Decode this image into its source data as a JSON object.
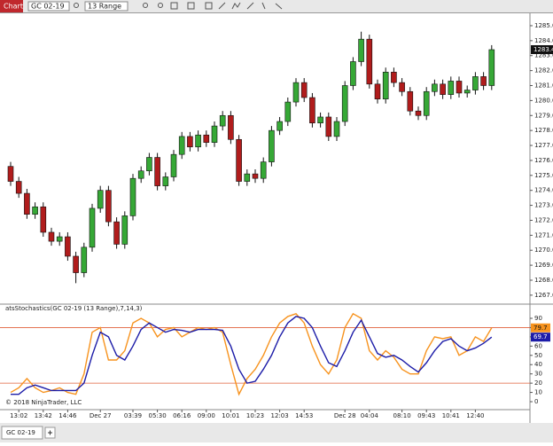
{
  "toolbar": {
    "window_title": "Chart",
    "instrument": "GC 02-19",
    "bar_type": "13 Range"
  },
  "tabs": [
    "GC 02-19"
  ],
  "chart_data": [
    {
      "type": "candlestick",
      "categories": [
        null,
        "13:02",
        null,
        null,
        "13:42",
        null,
        null,
        "14:46",
        null,
        null,
        null,
        "Dec 27",
        null,
        null,
        null,
        "03:39",
        null,
        null,
        "05:30",
        null,
        null,
        "06:16",
        null,
        null,
        "09:00",
        null,
        null,
        "10:01",
        null,
        null,
        "10:23",
        null,
        null,
        "12:03",
        null,
        null,
        "14:53",
        null,
        null,
        null,
        null,
        "Dec 28",
        null,
        null,
        "04:04",
        null,
        null,
        null,
        "08:10",
        null,
        null,
        "09:43",
        null,
        null,
        "10:41",
        null,
        null,
        "12:40",
        null,
        null
      ],
      "open": [
        1275.6,
        1274.6,
        1273.8,
        1272.4,
        1272.9,
        1271.2,
        1270.6,
        1270.9,
        1269.6,
        1268.5,
        1270.2,
        1272.8,
        1274.0,
        1271.9,
        1270.4,
        1272.3,
        1274.8,
        1275.3,
        1276.2,
        1274.3,
        1274.9,
        1276.4,
        1277.6,
        1276.9,
        1277.7,
        1277.2,
        1278.3,
        1279.0,
        1277.4,
        1274.6,
        1275.1,
        1274.8,
        1275.9,
        1278.0,
        1278.6,
        1279.9,
        1281.2,
        1280.2,
        1278.5,
        1278.9,
        1277.6,
        1278.6,
        1281.0,
        1282.6,
        1284.1,
        1281.1,
        1280.1,
        1281.9,
        1281.2,
        1280.6,
        1279.3,
        1279.0,
        1280.6,
        1281.1,
        1280.4,
        1281.3,
        1280.5,
        1280.7,
        1281.6,
        1281.0
      ],
      "high": [
        1275.9,
        1274.9,
        1274.1,
        1273.2,
        1273.2,
        1271.5,
        1271.2,
        1271.2,
        1269.9,
        1270.5,
        1273.1,
        1274.3,
        1274.3,
        1272.2,
        1272.6,
        1275.1,
        1275.6,
        1276.5,
        1276.5,
        1275.2,
        1276.7,
        1277.9,
        1277.9,
        1278.0,
        1278.0,
        1278.6,
        1279.3,
        1279.3,
        1277.7,
        1275.4,
        1275.4,
        1276.2,
        1278.3,
        1278.9,
        1280.2,
        1281.5,
        1281.5,
        1280.5,
        1279.2,
        1279.2,
        1278.9,
        1281.3,
        1282.9,
        1284.6,
        1284.4,
        1281.4,
        1282.2,
        1282.2,
        1281.5,
        1280.9,
        1279.6,
        1280.9,
        1281.4,
        1281.4,
        1281.6,
        1281.6,
        1281.0,
        1281.9,
        1281.9,
        1283.7
      ],
      "low": [
        1274.3,
        1273.5,
        1272.1,
        1272.1,
        1270.9,
        1270.3,
        1270.3,
        1269.3,
        1267.8,
        1268.2,
        1269.9,
        1272.5,
        1271.6,
        1270.1,
        1270.1,
        1272.0,
        1274.5,
        1275.0,
        1274.0,
        1274.0,
        1274.6,
        1276.1,
        1276.6,
        1276.6,
        1276.9,
        1276.9,
        1278.0,
        1277.1,
        1274.3,
        1274.3,
        1274.5,
        1274.5,
        1275.6,
        1277.7,
        1278.3,
        1279.6,
        1279.9,
        1278.2,
        1278.2,
        1277.3,
        1277.3,
        1278.3,
        1280.7,
        1282.3,
        1280.8,
        1279.8,
        1279.8,
        1280.9,
        1280.3,
        1279.0,
        1278.7,
        1278.7,
        1280.3,
        1280.1,
        1280.1,
        1280.2,
        1280.2,
        1280.4,
        1280.7,
        1280.7
      ],
      "close": [
        1274.6,
        1273.8,
        1272.4,
        1272.9,
        1271.2,
        1270.6,
        1270.9,
        1269.6,
        1268.5,
        1270.2,
        1272.8,
        1274.0,
        1271.9,
        1270.4,
        1272.3,
        1274.8,
        1275.3,
        1276.2,
        1274.3,
        1274.9,
        1276.4,
        1277.6,
        1276.9,
        1277.7,
        1277.2,
        1278.3,
        1279.0,
        1277.4,
        1274.6,
        1275.1,
        1274.8,
        1275.9,
        1278.0,
        1278.6,
        1279.9,
        1281.2,
        1280.2,
        1278.5,
        1278.9,
        1277.6,
        1278.6,
        1281.0,
        1282.6,
        1284.1,
        1281.1,
        1280.1,
        1281.9,
        1281.2,
        1280.6,
        1279.3,
        1279.0,
        1280.6,
        1281.1,
        1280.4,
        1281.3,
        1280.5,
        1280.7,
        1281.6,
        1281.0,
        1283.4
      ],
      "up_color": "#36a836",
      "down_color": "#b01c1c",
      "ylim": [
        1266.4,
        1285.65
      ],
      "yticks": [
        {
          "value": 1267,
          "label": "1267.0"
        },
        {
          "value": 1268,
          "label": "1268.0"
        },
        {
          "value": 1269,
          "label": "1269.0"
        },
        {
          "value": 1270,
          "label": "1270.0"
        },
        {
          "value": 1271,
          "label": "1271.0"
        },
        {
          "value": 1272,
          "label": "1272.0"
        },
        {
          "value": 1273,
          "label": "1273.0"
        },
        {
          "value": 1274,
          "label": "1274.0"
        },
        {
          "value": 1275,
          "label": "1275.0"
        },
        {
          "value": 1276,
          "label": "1276.0"
        },
        {
          "value": 1277,
          "label": "1277.0"
        },
        {
          "value": 1278,
          "label": "1278.0"
        },
        {
          "value": 1279,
          "label": "1279.0"
        },
        {
          "value": 1280,
          "label": "1280.0"
        },
        {
          "value": 1281,
          "label": "1281.0"
        },
        {
          "value": 1282,
          "label": "1282.0"
        },
        {
          "value": 1283,
          "label": "1283.0"
        },
        {
          "value": 1284,
          "label": "1284.0"
        },
        {
          "value": 1285,
          "label": "1285.0"
        }
      ]
    },
    {
      "type": "line",
      "title": "atsStochastics(GC 02-19 (13 Range),7,14,3)",
      "copyright": "© 2018 NinjaTrader, LLC",
      "series": [
        {
          "color": "#f7931e",
          "values": [
            10,
            15,
            25,
            15,
            10,
            12,
            15,
            10,
            8,
            30,
            75,
            80,
            45,
            45,
            55,
            85,
            90,
            85,
            70,
            78,
            80,
            70,
            75,
            80,
            78,
            80,
            75,
            40,
            8,
            25,
            35,
            50,
            70,
            85,
            92,
            95,
            85,
            60,
            40,
            30,
            45,
            80,
            95,
            90,
            55,
            45,
            55,
            48,
            35,
            30,
            30,
            55,
            70,
            68,
            70,
            50,
            55,
            70,
            65,
            79.7
          ]
        },
        {
          "color": "#1c1ca8",
          "values": [
            8,
            8,
            15,
            18,
            15,
            12,
            12,
            12,
            12,
            20,
            50,
            75,
            70,
            50,
            45,
            60,
            78,
            85,
            80,
            75,
            78,
            77,
            75,
            78,
            78,
            78,
            77,
            60,
            35,
            20,
            22,
            35,
            50,
            70,
            85,
            92,
            90,
            80,
            60,
            42,
            38,
            55,
            75,
            88,
            70,
            52,
            48,
            50,
            45,
            38,
            32,
            42,
            55,
            65,
            68,
            60,
            55,
            58,
            63,
            69.7
          ]
        }
      ],
      "levels": [
        {
          "value": 80,
          "color": "#e0603a"
        },
        {
          "value": 20,
          "color": "#e0603a"
        }
      ],
      "ylim": [
        -8.6,
        103.4
      ],
      "yticks": [
        0,
        10,
        20,
        30,
        40,
        50,
        60,
        70,
        80,
        90
      ]
    }
  ]
}
